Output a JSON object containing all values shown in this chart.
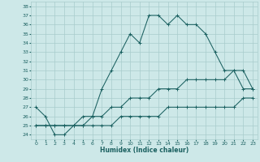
{
  "xlabel": "Humidex (Indice chaleur)",
  "xlim": [
    -0.5,
    23.5
  ],
  "ylim": [
    23.5,
    38.5
  ],
  "yticks": [
    24,
    25,
    26,
    27,
    28,
    29,
    30,
    31,
    32,
    33,
    34,
    35,
    36,
    37,
    38
  ],
  "xticks": [
    0,
    1,
    2,
    3,
    4,
    5,
    6,
    7,
    8,
    9,
    10,
    11,
    12,
    13,
    14,
    15,
    16,
    17,
    18,
    19,
    20,
    21,
    22,
    23
  ],
  "bg_color": "#cde8e8",
  "grid_color": "#a8cccc",
  "line_color": "#1a6060",
  "line1": [
    27,
    26,
    24,
    24,
    25,
    26,
    26,
    29,
    31,
    33,
    35,
    34,
    37,
    37,
    36,
    37,
    36,
    36,
    35,
    33,
    31,
    31,
    29,
    29
  ],
  "line2": [
    25,
    25,
    25,
    25,
    25,
    25,
    26,
    26,
    27,
    27,
    28,
    28,
    28,
    29,
    29,
    29,
    30,
    30,
    30,
    30,
    30,
    31,
    31,
    29
  ],
  "line3": [
    25,
    25,
    25,
    25,
    25,
    25,
    25,
    25,
    25,
    26,
    26,
    26,
    26,
    26,
    27,
    27,
    27,
    27,
    27,
    27,
    27,
    27,
    28,
    28
  ]
}
